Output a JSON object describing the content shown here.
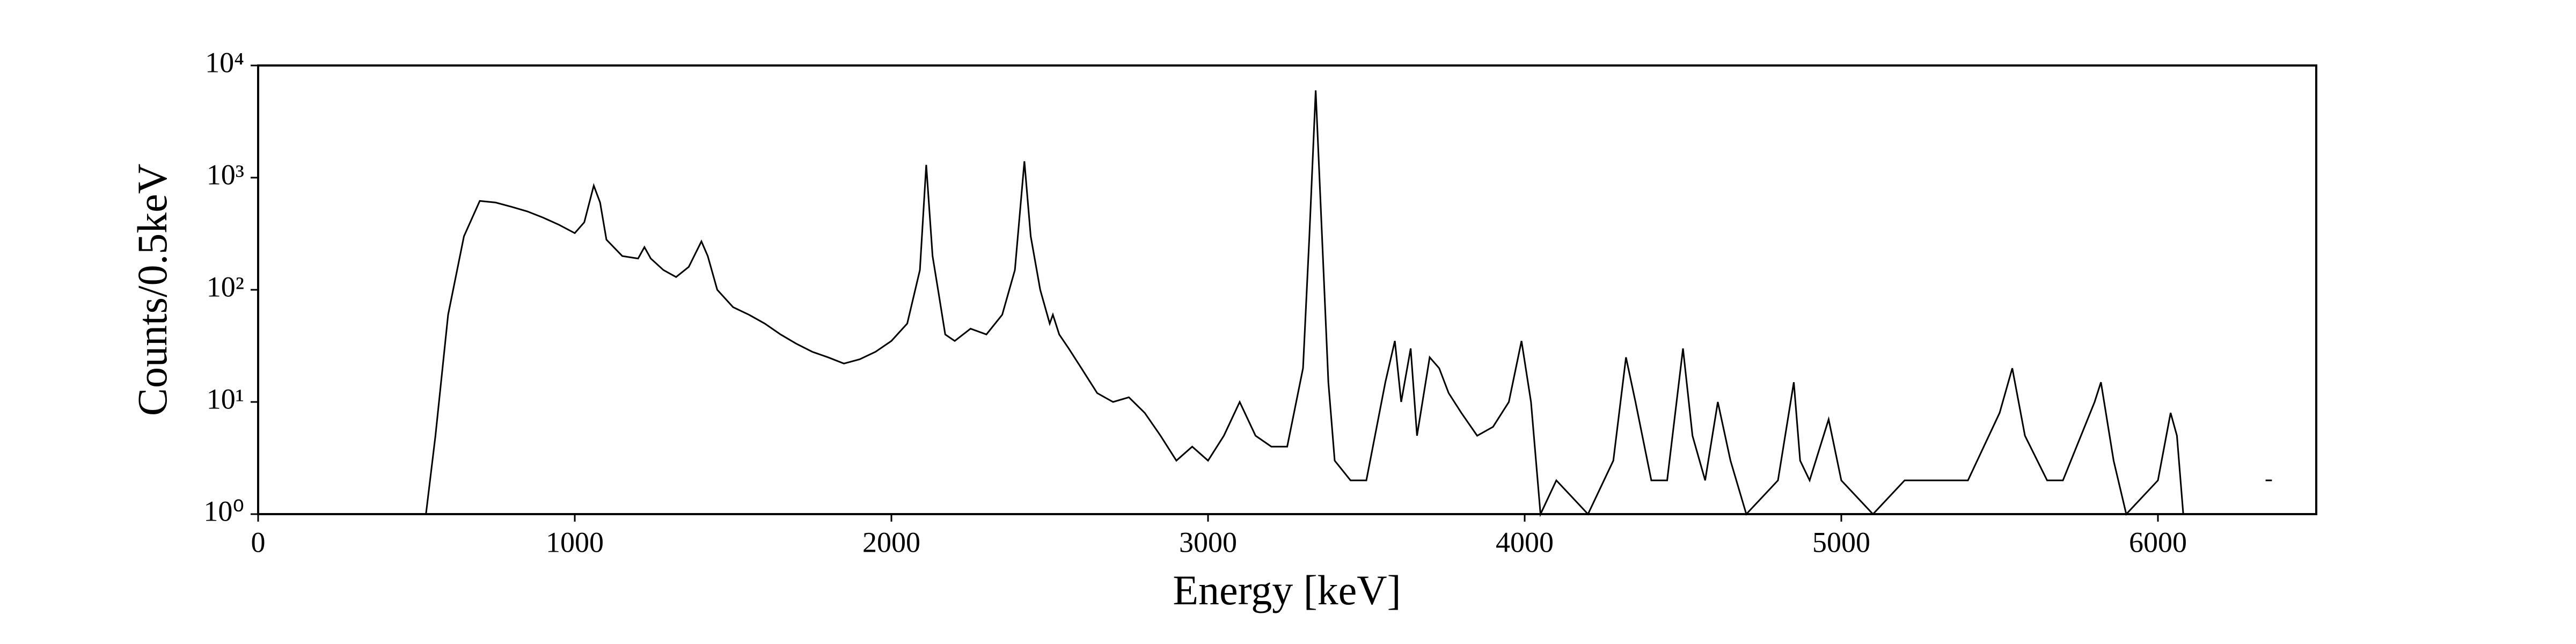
{
  "chart_data": {
    "type": "line",
    "xlabel": "Energy [keV]",
    "ylabel": "Counts/0.5keV",
    "yscale": "log",
    "color": "#000000",
    "xlim": [
      0,
      6500
    ],
    "ylim": [
      1,
      10000
    ],
    "xticks": [
      0,
      1000,
      2000,
      3000,
      4000,
      5000,
      6000
    ],
    "yticks": [
      {
        "value": 1,
        "label": "10⁰"
      },
      {
        "value": 10,
        "label": "10¹"
      },
      {
        "value": 100,
        "label": "10²"
      },
      {
        "value": 1000,
        "label": "10³"
      },
      {
        "value": 10000,
        "label": "10⁴"
      }
    ],
    "x": [
      530,
      560,
      600,
      650,
      700,
      750,
      800,
      850,
      900,
      950,
      1000,
      1030,
      1060,
      1080,
      1100,
      1150,
      1200,
      1220,
      1240,
      1280,
      1320,
      1360,
      1400,
      1420,
      1450,
      1500,
      1550,
      1600,
      1650,
      1700,
      1750,
      1800,
      1850,
      1900,
      1950,
      2000,
      2050,
      2090,
      2110,
      2130,
      2150,
      2170,
      2200,
      2250,
      2300,
      2350,
      2390,
      2420,
      2440,
      2470,
      2500,
      2510,
      2530,
      2560,
      2600,
      2650,
      2700,
      2750,
      2800,
      2850,
      2900,
      2950,
      3000,
      3050,
      3100,
      3150,
      3200,
      3250,
      3300,
      3320,
      3340,
      3360,
      3380,
      3400,
      3450,
      3500,
      3560,
      3590,
      3610,
      3640,
      3660,
      3700,
      3730,
      3760,
      3800,
      3850,
      3900,
      3950,
      3990,
      4020,
      4050,
      4100,
      4200,
      4280,
      4320,
      4350,
      4400,
      4450,
      4500,
      4530,
      4570,
      4610,
      4650,
      4700,
      4800,
      4850,
      4870,
      4900,
      4960,
      5000,
      5100,
      5200,
      5300,
      5400,
      5500,
      5540,
      5580,
      5650,
      5700,
      5800,
      5820,
      5860,
      5900,
      6000,
      6040,
      6060,
      6080,
      6150,
      6250,
      6340,
      6360
    ],
    "values": [
      1,
      5,
      60,
      300,
      620,
      600,
      550,
      500,
      440,
      380,
      320,
      400,
      850,
      600,
      280,
      200,
      190,
      240,
      190,
      150,
      130,
      160,
      270,
      200,
      100,
      70,
      60,
      50,
      40,
      33,
      28,
      25,
      22,
      24,
      28,
      35,
      50,
      150,
      1300,
      200,
      90,
      40,
      35,
      45,
      40,
      60,
      150,
      1400,
      300,
      100,
      50,
      60,
      40,
      30,
      20,
      12,
      10,
      11,
      8,
      5,
      3,
      4,
      3,
      5,
      10,
      5,
      4,
      4,
      20,
      300,
      6000,
      300,
      15,
      3,
      2,
      2,
      15,
      35,
      10,
      30,
      5,
      25,
      20,
      12,
      8,
      5,
      6,
      10,
      35,
      10,
      1,
      2,
      1,
      3,
      25,
      10,
      2,
      2,
      30,
      5,
      2,
      10,
      3,
      1,
      2,
      15,
      3,
      2,
      7,
      2,
      1,
      2,
      2,
      2,
      8,
      20,
      5,
      2,
      2,
      10,
      15,
      3,
      1,
      2,
      8,
      5,
      1,
      1,
      null,
      2,
      2
    ]
  }
}
